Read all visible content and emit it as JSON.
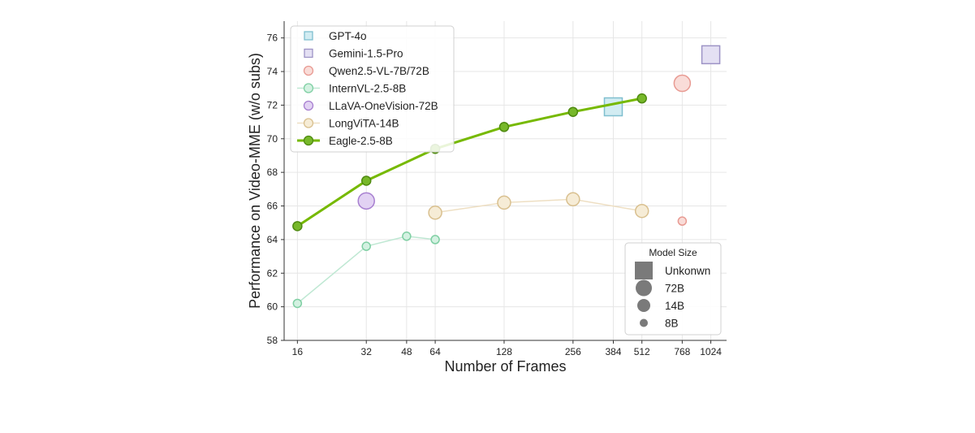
{
  "chart_data": {
    "type": "line",
    "xlabel": "Number of Frames",
    "ylabel": "Performance on Video-MME (w/o subs)",
    "x_scale": "log2",
    "x_ticks": [
      16,
      32,
      48,
      64,
      128,
      256,
      384,
      512,
      768,
      1024
    ],
    "xlim": [
      14,
      1200
    ],
    "ylim": [
      58,
      77
    ],
    "y_ticks": [
      58,
      60,
      62,
      64,
      66,
      68,
      70,
      72,
      74,
      76
    ],
    "grid": true,
    "legend_position": "top-left",
    "series": [
      {
        "name": "GPT-4o",
        "color": "#7fbfcf",
        "fill": "#d2ecf2",
        "marker": "square",
        "size": "Unkonwn",
        "connected": false,
        "points": [
          {
            "x": 384,
            "y": 71.9
          }
        ]
      },
      {
        "name": "Gemini-1.5-Pro",
        "color": "#9d93c6",
        "fill": "#e4e0f3",
        "marker": "square",
        "size": "Unkonwn",
        "connected": false,
        "points": [
          {
            "x": 1024,
            "y": 75.0
          }
        ]
      },
      {
        "name": "Qwen2.5-VL-7B/72B",
        "color": "#e89a92",
        "fill": "#f9dcd8",
        "marker": "circle",
        "connected": false,
        "points": [
          {
            "x": 768,
            "y": 73.3,
            "size": "72B"
          },
          {
            "x": 768,
            "y": 65.1,
            "size": "8B"
          }
        ]
      },
      {
        "name": "InternVL-2.5-8B",
        "color": "#7fcfa3",
        "fill": "#d3f1e1",
        "marker": "circle",
        "connected": true,
        "line_color": "#bfe8d3",
        "points": [
          {
            "x": 16,
            "y": 60.2,
            "size": "8B"
          },
          {
            "x": 32,
            "y": 63.6,
            "size": "8B"
          },
          {
            "x": 48,
            "y": 64.2,
            "size": "8B"
          },
          {
            "x": 64,
            "y": 64.0,
            "size": "8B"
          }
        ]
      },
      {
        "name": "LLaVA-OneVision-72B",
        "color": "#a77fd0",
        "fill": "#e2d2f3",
        "marker": "circle",
        "connected": false,
        "points": [
          {
            "x": 32,
            "y": 66.3,
            "size": "72B"
          }
        ]
      },
      {
        "name": "LongViTA-14B",
        "color": "#d9c08f",
        "fill": "#f6ecd6",
        "marker": "circle",
        "connected": true,
        "line_color": "#eedfc3",
        "points": [
          {
            "x": 64,
            "y": 65.6,
            "size": "14B"
          },
          {
            "x": 128,
            "y": 66.2,
            "size": "14B"
          },
          {
            "x": 256,
            "y": 66.4,
            "size": "14B"
          },
          {
            "x": 512,
            "y": 65.7,
            "size": "14B"
          }
        ]
      },
      {
        "name": "Eagle-2.5-8B",
        "color": "#4f8a10",
        "fill": "#77b82a",
        "marker": "circle",
        "connected": true,
        "line_color": "#76b900",
        "bold": true,
        "points": [
          {
            "x": 16,
            "y": 64.8
          },
          {
            "x": 32,
            "y": 67.5
          },
          {
            "x": 64,
            "y": 69.4
          },
          {
            "x": 128,
            "y": 70.7
          },
          {
            "x": 256,
            "y": 71.6
          },
          {
            "x": 512,
            "y": 72.4
          }
        ]
      }
    ],
    "size_legend": {
      "title": "Model Size",
      "position": "bottom-right",
      "items": [
        {
          "label": "Unkonwn",
          "marker": "square"
        },
        {
          "label": "72B",
          "marker": "circle"
        },
        {
          "label": "14B",
          "marker": "circle"
        },
        {
          "label": "8B",
          "marker": "circle"
        }
      ]
    }
  }
}
